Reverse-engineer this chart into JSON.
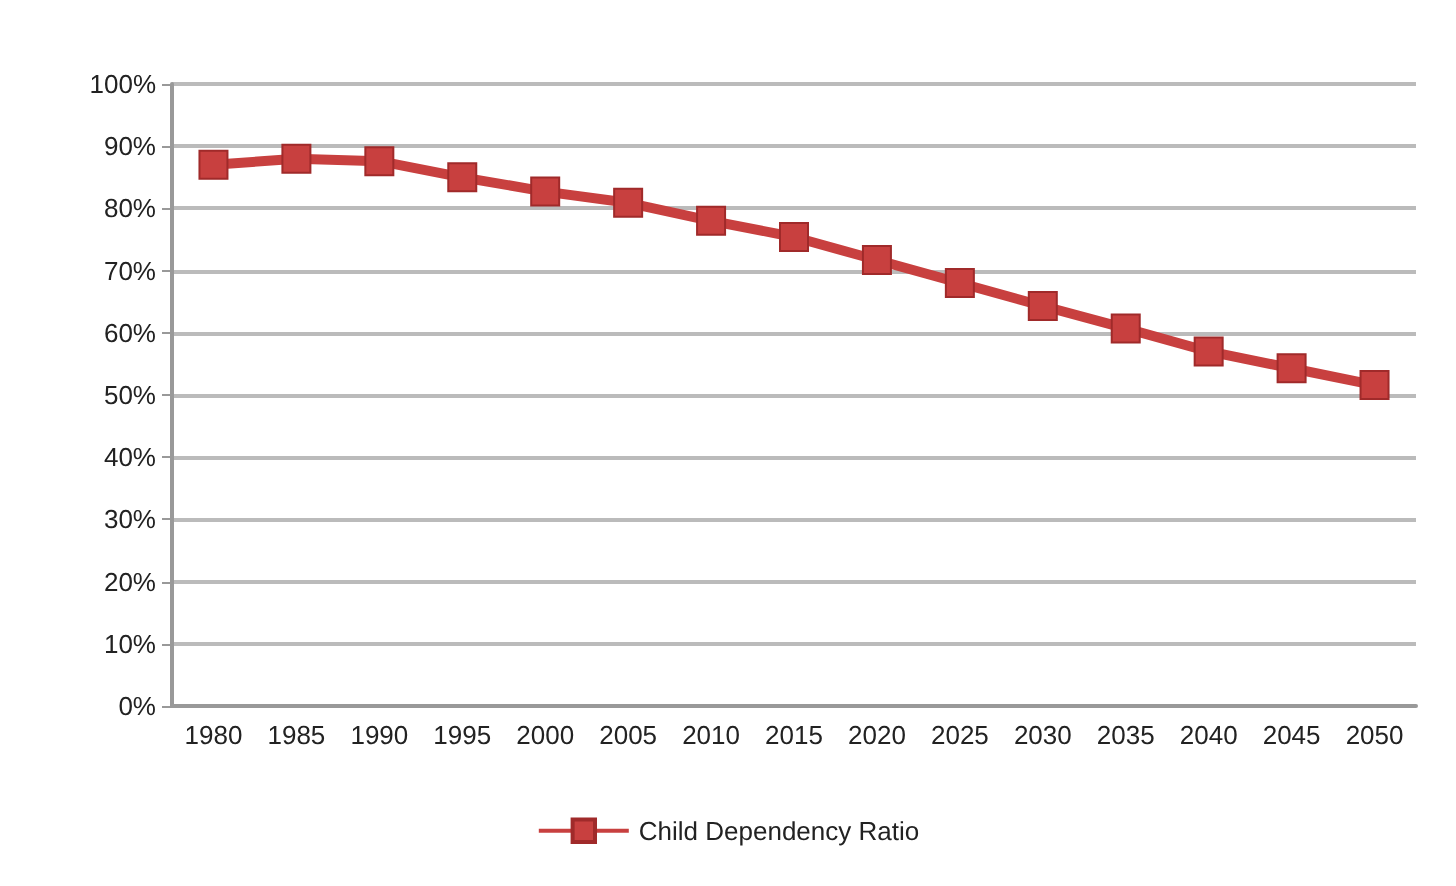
{
  "chart_data": {
    "type": "line",
    "categories": [
      "1980",
      "1985",
      "1990",
      "1995",
      "2000",
      "2005",
      "2010",
      "2015",
      "2020",
      "2025",
      "2030",
      "2035",
      "2040",
      "2045",
      "2050"
    ],
    "series": [
      {
        "name": "Child Dependency Ratio",
        "color": "#c8403f",
        "values": [
          87,
          88,
          87.6,
          85,
          82.7,
          80.9,
          78,
          75.4,
          71.7,
          68,
          64.3,
          60.7,
          57,
          54.3,
          51.6
        ]
      }
    ],
    "ylim": [
      0,
      100
    ],
    "yticks": [
      {
        "value": 0,
        "label": "0%"
      },
      {
        "value": 10,
        "label": "10%"
      },
      {
        "value": 20,
        "label": "20%"
      },
      {
        "value": 30,
        "label": "30%"
      },
      {
        "value": 40,
        "label": "40%"
      },
      {
        "value": 50,
        "label": "50%"
      },
      {
        "value": 60,
        "label": "60%"
      },
      {
        "value": 70,
        "label": "70%"
      },
      {
        "value": 80,
        "label": "80%"
      },
      {
        "value": 90,
        "label": "90%"
      },
      {
        "value": 100,
        "label": "100%"
      }
    ],
    "grid": "y",
    "legend": "bottom",
    "marker": "square",
    "line_style": "solid"
  }
}
